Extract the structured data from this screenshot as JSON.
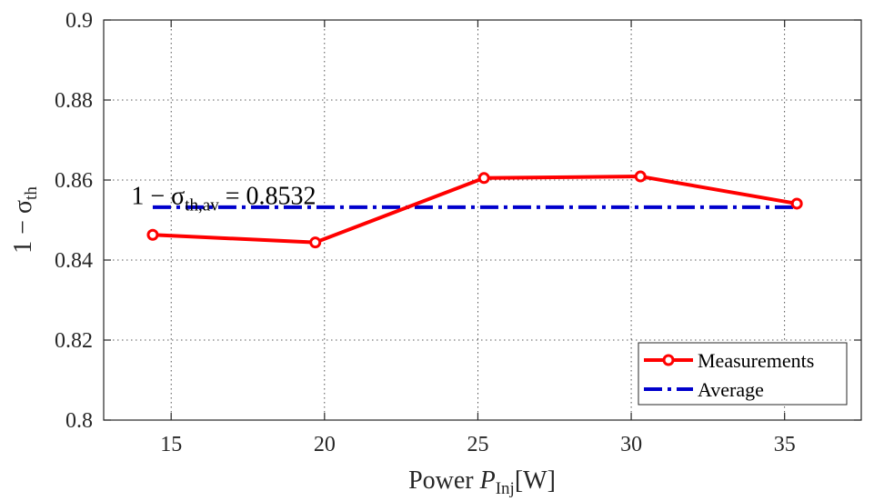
{
  "chart_data": {
    "type": "line",
    "xlabel": {
      "main": "Power ",
      "symbol": "P",
      "subscript": "Inj",
      "unit": "[W]"
    },
    "ylabel": {
      "main": "1 − σ",
      "subscript": "th"
    },
    "xlim": [
      12.8,
      37.5
    ],
    "ylim": [
      0.8,
      0.9
    ],
    "xticks": [
      15,
      20,
      25,
      30,
      35
    ],
    "xtick_labels": [
      "15",
      "20",
      "25",
      "30",
      "35"
    ],
    "yticks": [
      0.8,
      0.82,
      0.84,
      0.86,
      0.88,
      0.9
    ],
    "ytick_labels": [
      "0.8",
      "0.82",
      "0.84",
      "0.86",
      "0.88",
      "0.9"
    ],
    "grid": true,
    "legend_position": "bottom-right",
    "series": [
      {
        "name": "Measurements",
        "color": "#ff0000",
        "style": "solid-circle-markers",
        "x": [
          14.4,
          19.7,
          25.2,
          30.3,
          35.4
        ],
        "y": [
          0.8463,
          0.8444,
          0.8605,
          0.8609,
          0.8541
        ]
      },
      {
        "name": "Average",
        "color": "#0000cc",
        "style": "dash-dot",
        "x": [
          14.4,
          35.4
        ],
        "y": [
          0.8532,
          0.8532
        ]
      }
    ],
    "annotations": [
      {
        "prefix": "1 − σ",
        "subscript": "th,av",
        "suffix": " = 0.8532",
        "x": 13.7,
        "y": 0.8563
      }
    ]
  }
}
